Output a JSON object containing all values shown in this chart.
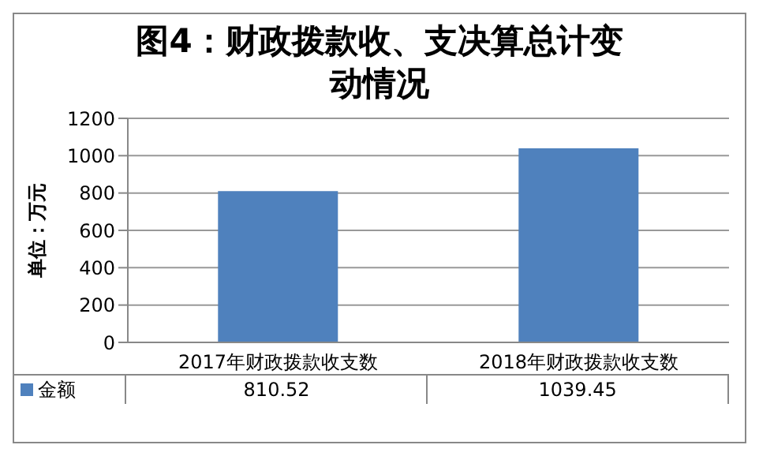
{
  "chart_data": {
    "type": "bar",
    "title": "图4：财政拨款收、支决算总计变动情况",
    "ylabel": "单位：万元",
    "categories": [
      "2017年财政拨款收支数",
      "2018年财政拨款收支数"
    ],
    "series": [
      {
        "name": "金额",
        "color": "#4f81bd",
        "values": [
          810.52,
          1039.45
        ]
      }
    ],
    "ylim": [
      0,
      1200
    ],
    "yticks": [
      0,
      200,
      400,
      600,
      800,
      1000,
      1200
    ],
    "grid": "y",
    "data_labels": true,
    "legend": "bottom"
  }
}
